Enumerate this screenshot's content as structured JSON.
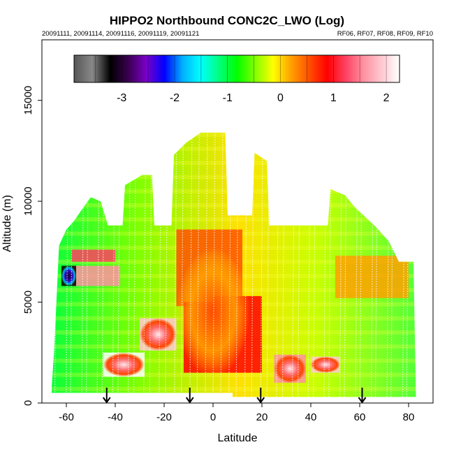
{
  "chart_data": {
    "type": "heatmap",
    "title": "HIPPO2 Northbound CONC2C_LWO (Log)",
    "subtitle_left": "20091111, 20091114, 20091116, 20091119, 20091121",
    "subtitle_right": "RF06, RF07, RF08, RF09, RF10",
    "xlabel": "Latitude",
    "ylabel": "Altitude (m)",
    "xlim": [
      -70,
      90
    ],
    "ylim": [
      0,
      18000
    ],
    "x_ticks": [
      -60,
      -40,
      -20,
      0,
      20,
      40,
      60,
      80
    ],
    "y_ticks": [
      0,
      5000,
      10000,
      15000
    ],
    "colorbar": {
      "range": [
        -3.9,
        2.25
      ],
      "ticks": [
        -3,
        -2,
        -1,
        0,
        1,
        2
      ],
      "colors": [
        "#555555",
        "#888888",
        "#000000",
        "#3a0050",
        "#7a00c8",
        "#0000ff",
        "#00b0ff",
        "#00ffff",
        "#00ff80",
        "#00ff00",
        "#80ff00",
        "#ffff00",
        "#ffa000",
        "#ff5000",
        "#ff0000",
        "#ff4060",
        "#ff90a0",
        "#ffc8d0",
        "#ffffff"
      ]
    },
    "flight_markers_latitude": [
      -43.5,
      -9.5,
      19.5,
      61
    ],
    "profile_envelope": [
      {
        "lat": -66,
        "top": 800
      },
      {
        "lat": -65,
        "top": 2600
      },
      {
        "lat": -63,
        "top": 7800
      },
      {
        "lat": -60,
        "top": 8600
      },
      {
        "lat": -57,
        "top": 9000
      },
      {
        "lat": -53,
        "top": 9700
      },
      {
        "lat": -50,
        "top": 10200
      },
      {
        "lat": -46,
        "top": 10000
      },
      {
        "lat": -43,
        "top": 8800
      },
      {
        "lat": -37,
        "top": 8800
      },
      {
        "lat": -36,
        "top": 10800
      },
      {
        "lat": -29,
        "top": 11300
      },
      {
        "lat": -25,
        "top": 11300
      },
      {
        "lat": -24,
        "top": 8800
      },
      {
        "lat": -17,
        "top": 8800
      },
      {
        "lat": -16,
        "top": 12300
      },
      {
        "lat": -11,
        "top": 12900
      },
      {
        "lat": -5,
        "top": 13400
      },
      {
        "lat": 5,
        "top": 13400
      },
      {
        "lat": 6,
        "top": 9300
      },
      {
        "lat": 16,
        "top": 9300
      },
      {
        "lat": 17,
        "top": 12400
      },
      {
        "lat": 22,
        "top": 12000
      },
      {
        "lat": 23,
        "top": 8800
      },
      {
        "lat": 47,
        "top": 8800
      },
      {
        "lat": 48,
        "top": 10600
      },
      {
        "lat": 54,
        "top": 10300
      },
      {
        "lat": 58,
        "top": 9700
      },
      {
        "lat": 66,
        "top": 8800
      },
      {
        "lat": 72,
        "top": 8000
      },
      {
        "lat": 76,
        "top": 7000
      },
      {
        "lat": 82,
        "top": 7000
      },
      {
        "lat": 83,
        "top": 300
      }
    ],
    "color_patches": [
      {
        "lat": [
          -58,
          -40
        ],
        "alt": [
          7000,
          7600
        ],
        "value": 1.2
      },
      {
        "lat": [
          -58,
          -38
        ],
        "alt": [
          5800,
          6800
        ],
        "value": 1.4
      },
      {
        "lat": [
          -62,
          -56
        ],
        "alt": [
          5800,
          6800
        ],
        "value": -3.2
      },
      {
        "lat": [
          -45,
          -28
        ],
        "alt": [
          1300,
          2500
        ],
        "value": 2.2
      },
      {
        "lat": [
          -30,
          -15
        ],
        "alt": [
          2600,
          4200
        ],
        "value": 2.0
      },
      {
        "lat": [
          -15,
          12
        ],
        "alt": [
          4800,
          8600
        ],
        "value": 0.7
      },
      {
        "lat": [
          -12,
          20
        ],
        "alt": [
          1500,
          5000
        ],
        "value": 0.9
      },
      {
        "lat": [
          0,
          20
        ],
        "alt": [
          5000,
          5300
        ],
        "value": 1.0
      },
      {
        "lat": [
          25,
          38
        ],
        "alt": [
          1000,
          2400
        ],
        "value": 1.6
      },
      {
        "lat": [
          40,
          52
        ],
        "alt": [
          1500,
          2300
        ],
        "value": 1.8
      },
      {
        "lat": [
          50,
          80
        ],
        "alt": [
          5200,
          7300
        ],
        "value": 0.3
      }
    ]
  }
}
